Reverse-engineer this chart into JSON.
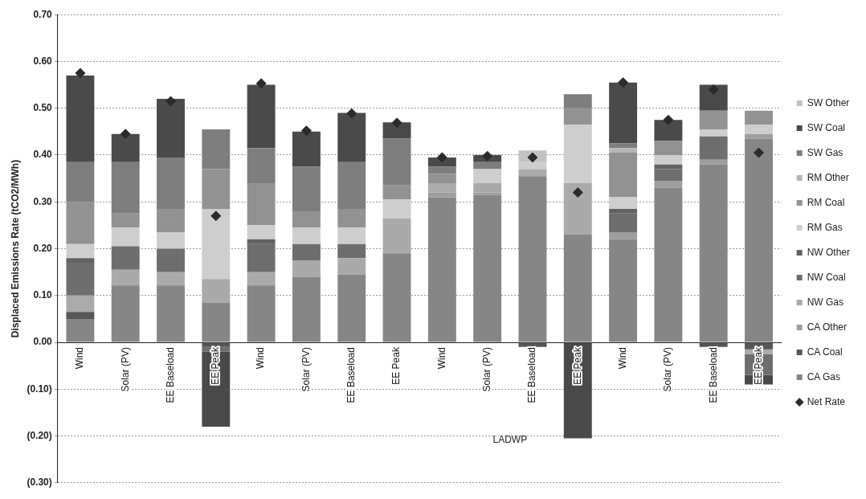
{
  "chart_data": {
    "type": "bar",
    "stacked": true,
    "ylabel": "Displaced Emissions Rate (tCO2/MWh)",
    "categories": [
      "Wind",
      "Solar (PV)",
      "EE Baseload",
      "EE Peak",
      "Wind",
      "Solar (PV)",
      "EE Baseload",
      "EE Peak",
      "Wind",
      "Solar (PV)",
      "EE Baseload",
      "EE Peak",
      "Wind",
      "Solar (PV)",
      "EE Baseload",
      "EE Peak"
    ],
    "annotations": [
      "LADWP"
    ],
    "ylim": [
      -0.3,
      0.7
    ],
    "yticks": [
      {
        "value": -0.3,
        "label": "(0.30)"
      },
      {
        "value": -0.2,
        "label": "(0.20)"
      },
      {
        "value": -0.1,
        "label": "(0.10)"
      },
      {
        "value": 0,
        "label": "0.00"
      },
      {
        "value": 0.1,
        "label": "0.10"
      },
      {
        "value": 0.2,
        "label": "0.20"
      },
      {
        "value": 0.3,
        "label": "0.30"
      },
      {
        "value": 0.4,
        "label": "0.40"
      },
      {
        "value": 0.5,
        "label": "0.50"
      },
      {
        "value": 0.6,
        "label": "0.60"
      },
      {
        "value": 0.7,
        "label": "0.70"
      }
    ],
    "grid": "y",
    "legend": "right",
    "series": [
      {
        "name": "Net Rate",
        "type": "scatter",
        "marker": "diamond",
        "color": "#2b2b2b",
        "values": [
          0.575,
          0.445,
          0.515,
          0.27,
          0.553,
          0.452,
          0.489,
          0.469,
          0.395,
          0.398,
          0.395,
          0.32,
          0.555,
          0.475,
          0.54,
          0.405
        ]
      },
      {
        "name": "CA Gas",
        "color": "#868686",
        "values": [
          0.05,
          0.12,
          0.12,
          0.085,
          0.12,
          0.14,
          0.145,
          0.19,
          0.31,
          0.315,
          0.355,
          0.23,
          0.22,
          0.33,
          0.38,
          0.435
        ]
      },
      {
        "name": "CA Coal",
        "color": "#565656",
        "values": [
          0.015,
          0,
          0,
          -0.01,
          0,
          0,
          0,
          0,
          0,
          0,
          -0.01,
          0,
          0,
          0,
          -0.01,
          -0.015
        ]
      },
      {
        "name": "CA Other",
        "color": "#9e9e9e",
        "values": [
          0,
          0.005,
          0.005,
          0,
          0.005,
          0,
          0,
          0,
          0.01,
          0.005,
          0,
          0,
          0.015,
          0.015,
          0.01,
          0.01
        ]
      },
      {
        "name": "NW Gas",
        "color": "#aaaaaa",
        "values": [
          0.035,
          0.03,
          0.025,
          0.05,
          0.025,
          0.035,
          0.035,
          0.075,
          0.02,
          0.02,
          0.015,
          0.11,
          0,
          0,
          0,
          -0.01
        ]
      },
      {
        "name": "NW Coal",
        "color": "#6e6e6e",
        "values": [
          0.07,
          0.05,
          0.05,
          -0.01,
          0.06,
          0.035,
          0.03,
          0,
          0,
          0,
          0,
          0,
          0.04,
          0.025,
          0.05,
          -0.045
        ]
      },
      {
        "name": "NW Other",
        "color": "#626262",
        "values": [
          0.01,
          0,
          0,
          0,
          0.01,
          0,
          0,
          0,
          0,
          0,
          0,
          0,
          0.01,
          0.01,
          0,
          0
        ]
      },
      {
        "name": "RM Gas",
        "color": "#cecece",
        "values": [
          0.03,
          0.04,
          0.035,
          0.15,
          0.03,
          0.035,
          0.035,
          0.04,
          0,
          0.03,
          0.015,
          0.125,
          0.025,
          0.02,
          0.015,
          0.02
        ]
      },
      {
        "name": "RM Coal",
        "color": "#929292",
        "values": [
          0.09,
          0.03,
          0.05,
          0.085,
          0.09,
          0.035,
          0.04,
          0.03,
          0.02,
          0,
          0,
          0.035,
          0.095,
          0.03,
          0.04,
          0.03
        ]
      },
      {
        "name": "RM Other",
        "color": "#b6b6b6",
        "values": [
          0,
          0,
          0,
          0,
          0,
          0,
          0,
          0,
          0,
          0,
          0,
          0,
          0.01,
          0,
          0,
          0
        ]
      },
      {
        "name": "SW Gas",
        "color": "#7e7e7e",
        "values": [
          0.085,
          0.11,
          0.11,
          0.085,
          0.075,
          0.095,
          0.1,
          0.1,
          0.015,
          0.015,
          0,
          0.03,
          0.01,
          0,
          0,
          0
        ]
      },
      {
        "name": "SW Coal",
        "color": "#4a4a4a",
        "values": [
          0.185,
          0.06,
          0.125,
          -0.16,
          0.135,
          0.075,
          0.105,
          0.035,
          0.02,
          0.015,
          0,
          -0.205,
          0.13,
          0.045,
          0.055,
          -0.02
        ]
      },
      {
        "name": "SW Other",
        "color": "#c2c2c2",
        "values": [
          0,
          0,
          0,
          0,
          0,
          0,
          0,
          0,
          0,
          0,
          0.025,
          0,
          0,
          0,
          0,
          0
        ]
      }
    ]
  }
}
